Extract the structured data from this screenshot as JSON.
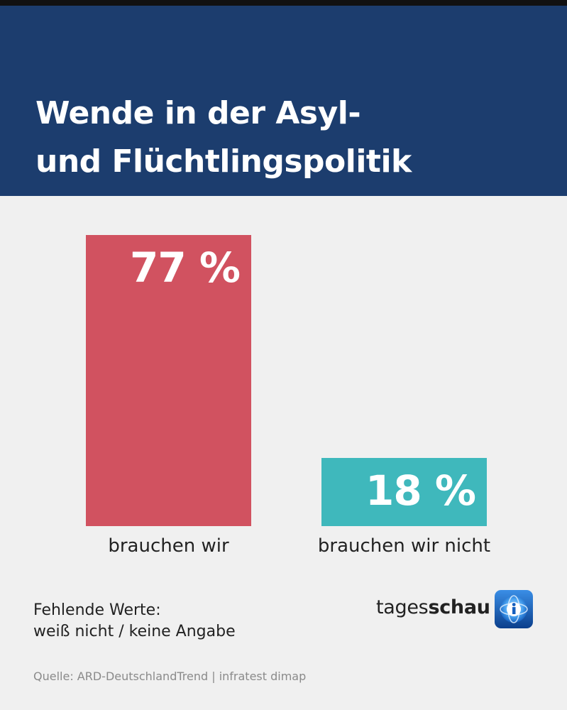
{
  "header": {
    "title_line1": "Wende in der Asyl-",
    "title_line2": "und Flüchtlingspolitik",
    "background": "#1c3d6e"
  },
  "chart_data": {
    "type": "bar",
    "title": "Wende in der Asyl- und Flüchtlingspolitik",
    "categories": [
      "brauchen wir",
      "brauchen wir nicht"
    ],
    "values": [
      77,
      18
    ],
    "value_labels": [
      "77 %",
      "18 %"
    ],
    "colors": [
      "#d15260",
      "#3fb8bc"
    ],
    "ylim": [
      0,
      77
    ],
    "xlabel": "",
    "ylabel": "",
    "grid": false,
    "legend": "none"
  },
  "missing_note": {
    "line1": "Fehlende Werte:",
    "line2": "weiß nicht / keine Angabe"
  },
  "logo": {
    "text_light": "tages",
    "text_bold": "schau",
    "icon": "tagesschau-globe-icon",
    "accent": "#1a63b8"
  },
  "source": "Quelle: ARD-DeutschlandTrend | infratest dimap"
}
